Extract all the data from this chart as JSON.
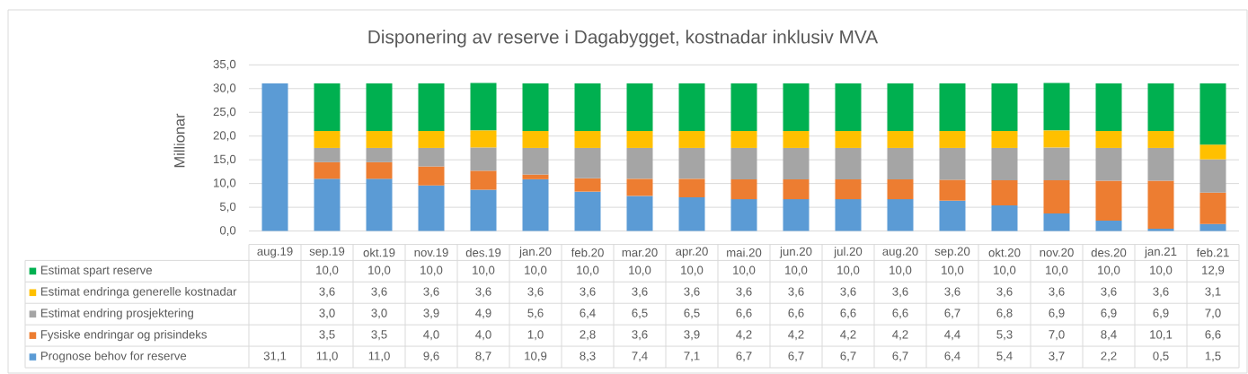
{
  "chart_data": {
    "type": "bar",
    "title": "Disponering av  reserve i Dagabygget, kostnadar inklusiv MVA",
    "ylabel": "Millionar",
    "stacked": true,
    "grid": "y",
    "legend": "bottom",
    "categories": [
      "aug.19",
      "sep.19",
      "okt.19",
      "nov.19",
      "des.19",
      "jan.20",
      "feb.20",
      "mar.20",
      "apr.20",
      "mai.20",
      "jun.20",
      "jul.20",
      "aug.20",
      "sep.20",
      "okt.20",
      "nov.20",
      "des.20",
      "jan.21",
      "feb.21"
    ],
    "ylim": [
      0,
      35
    ],
    "yticks": [
      {
        "value": 0,
        "label": "0,0"
      },
      {
        "value": 5,
        "label": "5,0"
      },
      {
        "value": 10,
        "label": "10,0"
      },
      {
        "value": 15,
        "label": "15,0"
      },
      {
        "value": 20,
        "label": "20,0"
      },
      {
        "value": 25,
        "label": "25,0"
      },
      {
        "value": 30,
        "label": "30,0"
      },
      {
        "value": 35,
        "label": "35,0"
      }
    ],
    "series": [
      {
        "name": "Prognose behov for reserve",
        "color": "#5b9bd5",
        "values": [
          31.1,
          11.0,
          11.0,
          9.6,
          8.7,
          10.9,
          8.3,
          7.4,
          7.1,
          6.7,
          6.7,
          6.7,
          6.7,
          6.4,
          5.4,
          3.7,
          2.2,
          0.5,
          1.5
        ],
        "value_labels": [
          "31,1",
          "11,0",
          "11,0",
          "9,6",
          "8,7",
          "10,9",
          "8,3",
          "7,4",
          "7,1",
          "6,7",
          "6,7",
          "6,7",
          "6,7",
          "6,4",
          "5,4",
          "3,7",
          "2,2",
          "0,5",
          "1,5"
        ]
      },
      {
        "name": "Fysiske endringar og prisindeks",
        "color": "#ed7d31",
        "values": [
          null,
          3.5,
          3.5,
          4.0,
          4.0,
          1.0,
          2.8,
          3.6,
          3.9,
          4.2,
          4.2,
          4.2,
          4.2,
          4.4,
          5.3,
          7.0,
          8.4,
          10.1,
          6.6
        ],
        "value_labels": [
          null,
          "3,5",
          "3,5",
          "4,0",
          "4,0",
          "1,0",
          "2,8",
          "3,6",
          "3,9",
          "4,2",
          "4,2",
          "4,2",
          "4,2",
          "4,4",
          "5,3",
          "7,0",
          "8,4",
          "10,1",
          "6,6"
        ]
      },
      {
        "name": "Estimat endring prosjektering",
        "color": "#a5a5a5",
        "values": [
          null,
          3.0,
          3.0,
          3.9,
          4.9,
          5.6,
          6.4,
          6.5,
          6.5,
          6.6,
          6.6,
          6.6,
          6.6,
          6.7,
          6.8,
          6.9,
          6.9,
          6.9,
          7.0
        ],
        "value_labels": [
          null,
          "3,0",
          "3,0",
          "3,9",
          "4,9",
          "5,6",
          "6,4",
          "6,5",
          "6,5",
          "6,6",
          "6,6",
          "6,6",
          "6,6",
          "6,7",
          "6,8",
          "6,9",
          "6,9",
          "6,9",
          "7,0"
        ]
      },
      {
        "name": "Estimat endringa generelle kostnadar",
        "color": "#ffc000",
        "values": [
          null,
          3.6,
          3.6,
          3.6,
          3.6,
          3.6,
          3.6,
          3.6,
          3.6,
          3.6,
          3.6,
          3.6,
          3.6,
          3.6,
          3.6,
          3.6,
          3.6,
          3.6,
          3.1
        ],
        "value_labels": [
          null,
          "3,6",
          "3,6",
          "3,6",
          "3,6",
          "3,6",
          "3,6",
          "3,6",
          "3,6",
          "3,6",
          "3,6",
          "3,6",
          "3,6",
          "3,6",
          "3,6",
          "3,6",
          "3,6",
          "3,6",
          "3,1"
        ]
      },
      {
        "name": "Estimat spart reserve",
        "color": "#00b050",
        "values": [
          null,
          10.0,
          10.0,
          10.0,
          10.0,
          10.0,
          10.0,
          10.0,
          10.0,
          10.0,
          10.0,
          10.0,
          10.0,
          10.0,
          10.0,
          10.0,
          10.0,
          10.0,
          12.9
        ],
        "value_labels": [
          null,
          "10,0",
          "10,0",
          "10,0",
          "10,0",
          "10,0",
          "10,0",
          "10,0",
          "10,0",
          "10,0",
          "10,0",
          "10,0",
          "10,0",
          "10,0",
          "10,0",
          "10,0",
          "10,0",
          "10,0",
          "12,9"
        ]
      }
    ]
  }
}
